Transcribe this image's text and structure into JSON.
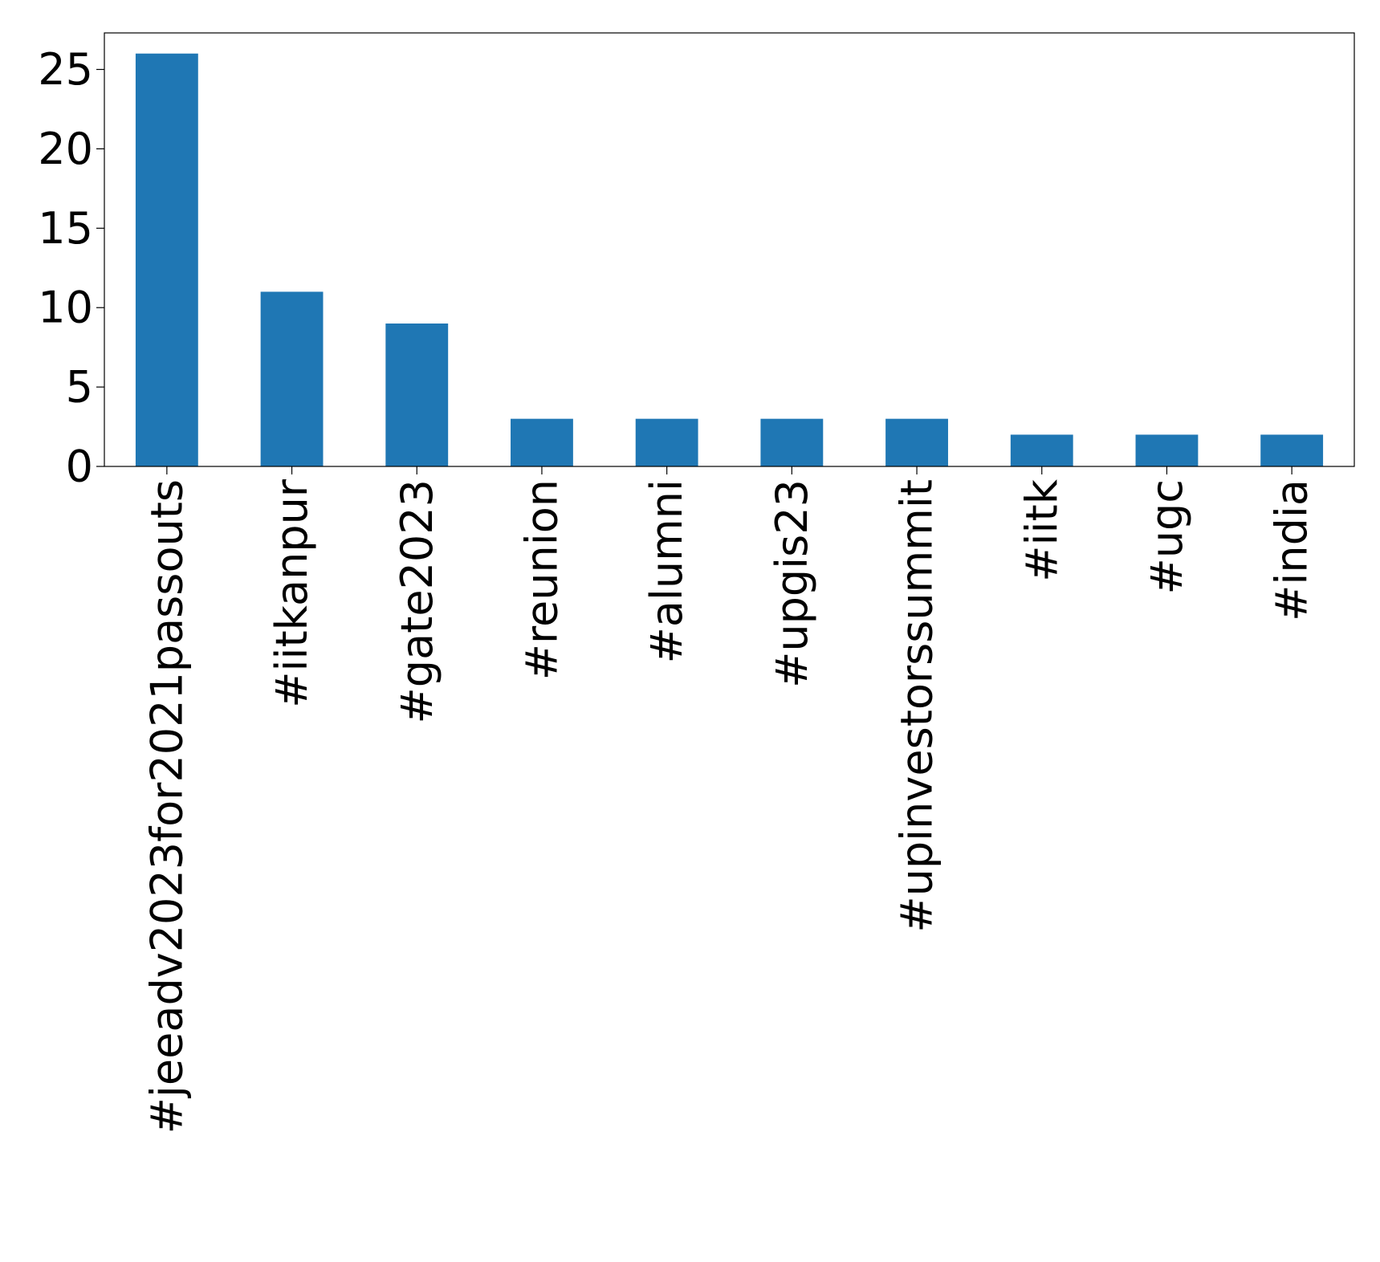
{
  "chart_data": {
    "type": "bar",
    "title": "",
    "xlabel": "",
    "ylabel": "",
    "categories": [
      "#jeeadv2023for2021passouts",
      "#iitkanpur",
      "#gate2023",
      "#reunion",
      "#alumni",
      "#upgis23",
      "#upinvestorssummit",
      "#iitk",
      "#ugc",
      "#india"
    ],
    "values": [
      26,
      11,
      9,
      3,
      3,
      3,
      3,
      2,
      2,
      2
    ],
    "ylim": [
      0,
      27.3
    ],
    "yticks": [
      0,
      5,
      10,
      15,
      20,
      25
    ],
    "grid": false,
    "legend": "none",
    "bar_color": "#1f77b4"
  }
}
